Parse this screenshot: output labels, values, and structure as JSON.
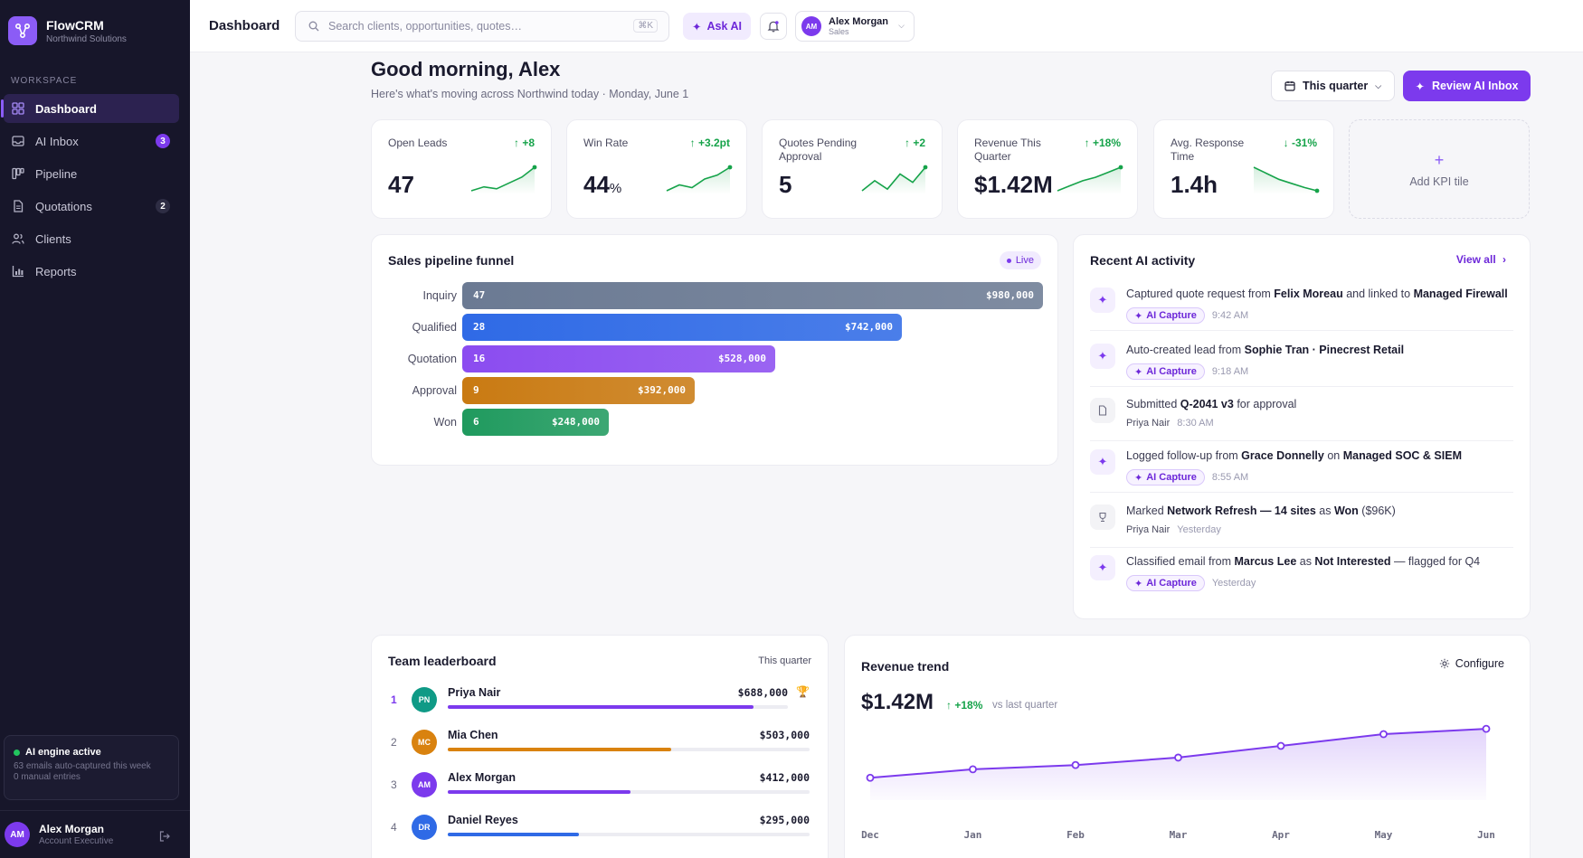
{
  "brand": {
    "name": "FlowCRM",
    "org": "Northwind Solutions"
  },
  "sidebar": {
    "section_label": "WORKSPACE",
    "items": [
      {
        "label": "Dashboard",
        "icon": "grid-icon",
        "active": true
      },
      {
        "label": "AI Inbox",
        "icon": "inbox-icon",
        "badge": "3"
      },
      {
        "label": "Pipeline",
        "icon": "kanban-icon"
      },
      {
        "label": "Quotations",
        "icon": "document-icon",
        "badge": "2"
      },
      {
        "label": "Clients",
        "icon": "users-icon"
      },
      {
        "label": "Reports",
        "icon": "bar-chart-icon"
      }
    ],
    "ai_engine": {
      "title": "AI engine active",
      "line1": "63 emails auto-captured this week",
      "line2": "0 manual entries"
    },
    "user": {
      "initials": "AM",
      "name": "Alex Morgan",
      "role": "Account Executive"
    }
  },
  "topbar": {
    "title": "Dashboard",
    "search_placeholder": "Search clients, opportunities, quotes…",
    "search_shortcut": "⌘K",
    "ask_ai": "Ask AI",
    "profile": {
      "initials": "AM",
      "name": "Alex Morgan",
      "role": "Sales"
    }
  },
  "header": {
    "greeting": "Good morning, Alex",
    "subtitle": "Here's what's moving across Northwind today · Monday, June 1",
    "period_button": "This quarter",
    "review_button": "Review AI Inbox"
  },
  "kpis": [
    {
      "label": "Open Leads",
      "delta": "+8",
      "value": "47",
      "unit": "",
      "trend": [
        3,
        4,
        3.5,
        5,
        6.5,
        9
      ]
    },
    {
      "label": "Win Rate",
      "delta": "+3.2pt",
      "value": "44",
      "unit": "%",
      "trend": [
        3,
        4.5,
        3.8,
        6,
        7,
        9
      ]
    },
    {
      "label": "Quotes Pending Approval",
      "delta": "+2",
      "value": "5",
      "unit": "",
      "trend": [
        2,
        5,
        2.5,
        7,
        4.5,
        9
      ]
    },
    {
      "label": "Revenue This Quarter",
      "delta": "+18%",
      "value": "$1.42M",
      "unit": "",
      "trend": [
        2,
        3.5,
        5,
        6,
        7.5,
        9
      ]
    },
    {
      "label": "Avg. Response Time",
      "delta": "-31%",
      "value": "1.4h",
      "unit": "",
      "trend": [
        9,
        7.5,
        6,
        5,
        4,
        3.2
      ]
    }
  ],
  "add_kpi": "Add KPI tile",
  "funnel": {
    "title": "Sales pipeline funnel",
    "live": "Live",
    "stages": [
      {
        "label": "Inquiry",
        "count": "47",
        "amount": "$980,000",
        "value": 980000,
        "color": "#6b7a93"
      },
      {
        "label": "Qualified",
        "count": "28",
        "amount": "$742,000",
        "value": 742000,
        "color": "#2f6ae6"
      },
      {
        "label": "Quotation",
        "count": "16",
        "amount": "$528,000",
        "value": 528000,
        "color": "#8b4cf0"
      },
      {
        "label": "Approval",
        "count": "9",
        "amount": "$392,000",
        "value": 392000,
        "color": "#c97a12"
      },
      {
        "label": "Won",
        "count": "6",
        "amount": "$248,000",
        "value": 248000,
        "color": "#1f9a5e"
      }
    ]
  },
  "activity": {
    "title": "Recent AI activity",
    "view_all": "View all",
    "capture_label": "AI Capture",
    "items": [
      {
        "icon": "sparkle-icon",
        "pre": "Captured quote request from ",
        "b1": "Felix Moreau",
        "mid": " and linked to ",
        "b2": "Managed Firewall",
        "post": "",
        "tag": true,
        "who": "",
        "time": "9:42 AM"
      },
      {
        "icon": "sparkle-icon",
        "pre": "Auto-created lead from ",
        "b1": "Sophie Tran · Pinecrest Retail",
        "mid": "",
        "b2": "",
        "post": "",
        "tag": true,
        "who": "",
        "time": "9:18 AM"
      },
      {
        "icon": "document-icon",
        "pre": "Submitted ",
        "b1": "Q-2041 v3",
        "mid": " for approval",
        "b2": "",
        "post": "",
        "tag": false,
        "who": "Priya Nair",
        "time": "8:30 AM"
      },
      {
        "icon": "sparkle-icon",
        "pre": "Logged follow-up from ",
        "b1": "Grace Donnelly",
        "mid": " on ",
        "b2": "Managed SOC & SIEM",
        "post": "",
        "tag": true,
        "who": "",
        "time": "8:55 AM"
      },
      {
        "icon": "trophy-icon",
        "pre": "Marked ",
        "b1": "Network Refresh — 14 sites",
        "mid": " as ",
        "b2": "Won",
        "post": " ($96K)",
        "tag": false,
        "who": "Priya Nair",
        "time": "Yesterday"
      },
      {
        "icon": "sparkle-icon",
        "pre": "Classified email from ",
        "b1": "Marcus Lee",
        "mid": " as ",
        "b2": "Not Interested",
        "post": " — flagged for Q4",
        "tag": true,
        "who": "",
        "time": "Yesterday"
      }
    ]
  },
  "leaderboard": {
    "title": "Team leaderboard",
    "period": "This quarter",
    "rows": [
      {
        "rank": "1",
        "initials": "PN",
        "name": "Priya Nair",
        "amount": "$688,000",
        "value": 688000,
        "color": "#0f9a86",
        "bar": "#7c3aed"
      },
      {
        "rank": "2",
        "initials": "MC",
        "name": "Mia Chen",
        "amount": "$503,000",
        "value": 503000,
        "color": "#d9820f",
        "bar": "#d9820f"
      },
      {
        "rank": "3",
        "initials": "AM",
        "name": "Alex Morgan",
        "amount": "$412,000",
        "value": 412000,
        "color": "#7c3aed",
        "bar": "#7c3aed"
      },
      {
        "rank": "4",
        "initials": "DR",
        "name": "Daniel Reyes",
        "amount": "$295,000",
        "value": 295000,
        "color": "#2f6ae6",
        "bar": "#2f6ae6"
      }
    ]
  },
  "revenue": {
    "title": "Revenue trend",
    "configure": "Configure",
    "value": "$1.42M",
    "delta": "+18%",
    "vs": "vs last quarter"
  },
  "chart_data": {
    "type": "area",
    "categories": [
      "Dec",
      "Jan",
      "Feb",
      "Mar",
      "Apr",
      "May",
      "Jun"
    ],
    "values": [
      0.96,
      1.04,
      1.08,
      1.15,
      1.26,
      1.37,
      1.42
    ],
    "ylim": [
      0.75,
      1.6
    ],
    "grid": false,
    "color": "#7c3aed"
  },
  "colors": {
    "accent": "#7c3aed",
    "sidebar": "#17162a",
    "positive": "#16a34a"
  }
}
